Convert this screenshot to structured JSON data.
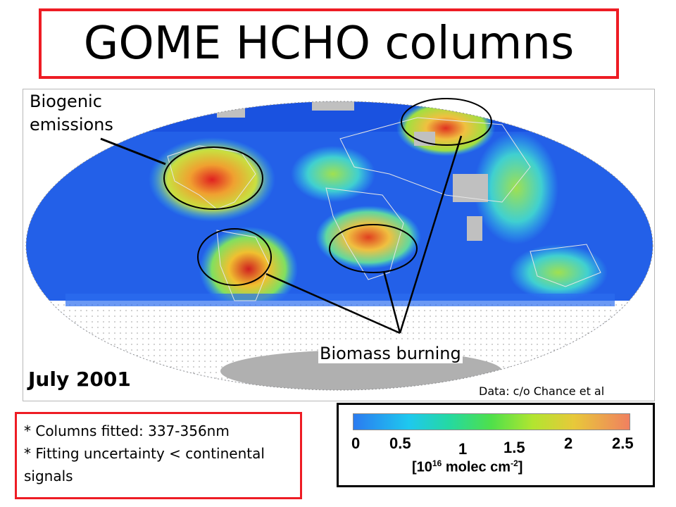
{
  "title": "GOME HCHO columns",
  "annotations": {
    "biogenic": "Biogenic\nemissions",
    "biomass": "Biomass burning",
    "month": "July 2001",
    "credit": "Data: c/o Chance et al"
  },
  "notes": [
    "* Columns fitted: 337-356nm",
    "* Fitting uncertainty < continental signals"
  ],
  "colorbar": {
    "ticks": [
      "0",
      "0.5",
      "1",
      "1.5",
      "2",
      "2.5"
    ],
    "units_prefix": "[10",
    "units_exp": "16",
    "units_mid": " molec cm",
    "units_exp2": "-2",
    "units_suffix": "]",
    "colors": [
      "#2b7bf0",
      "#1ec8ef",
      "#4fe04a",
      "#e8c83a",
      "#f08060"
    ]
  }
}
